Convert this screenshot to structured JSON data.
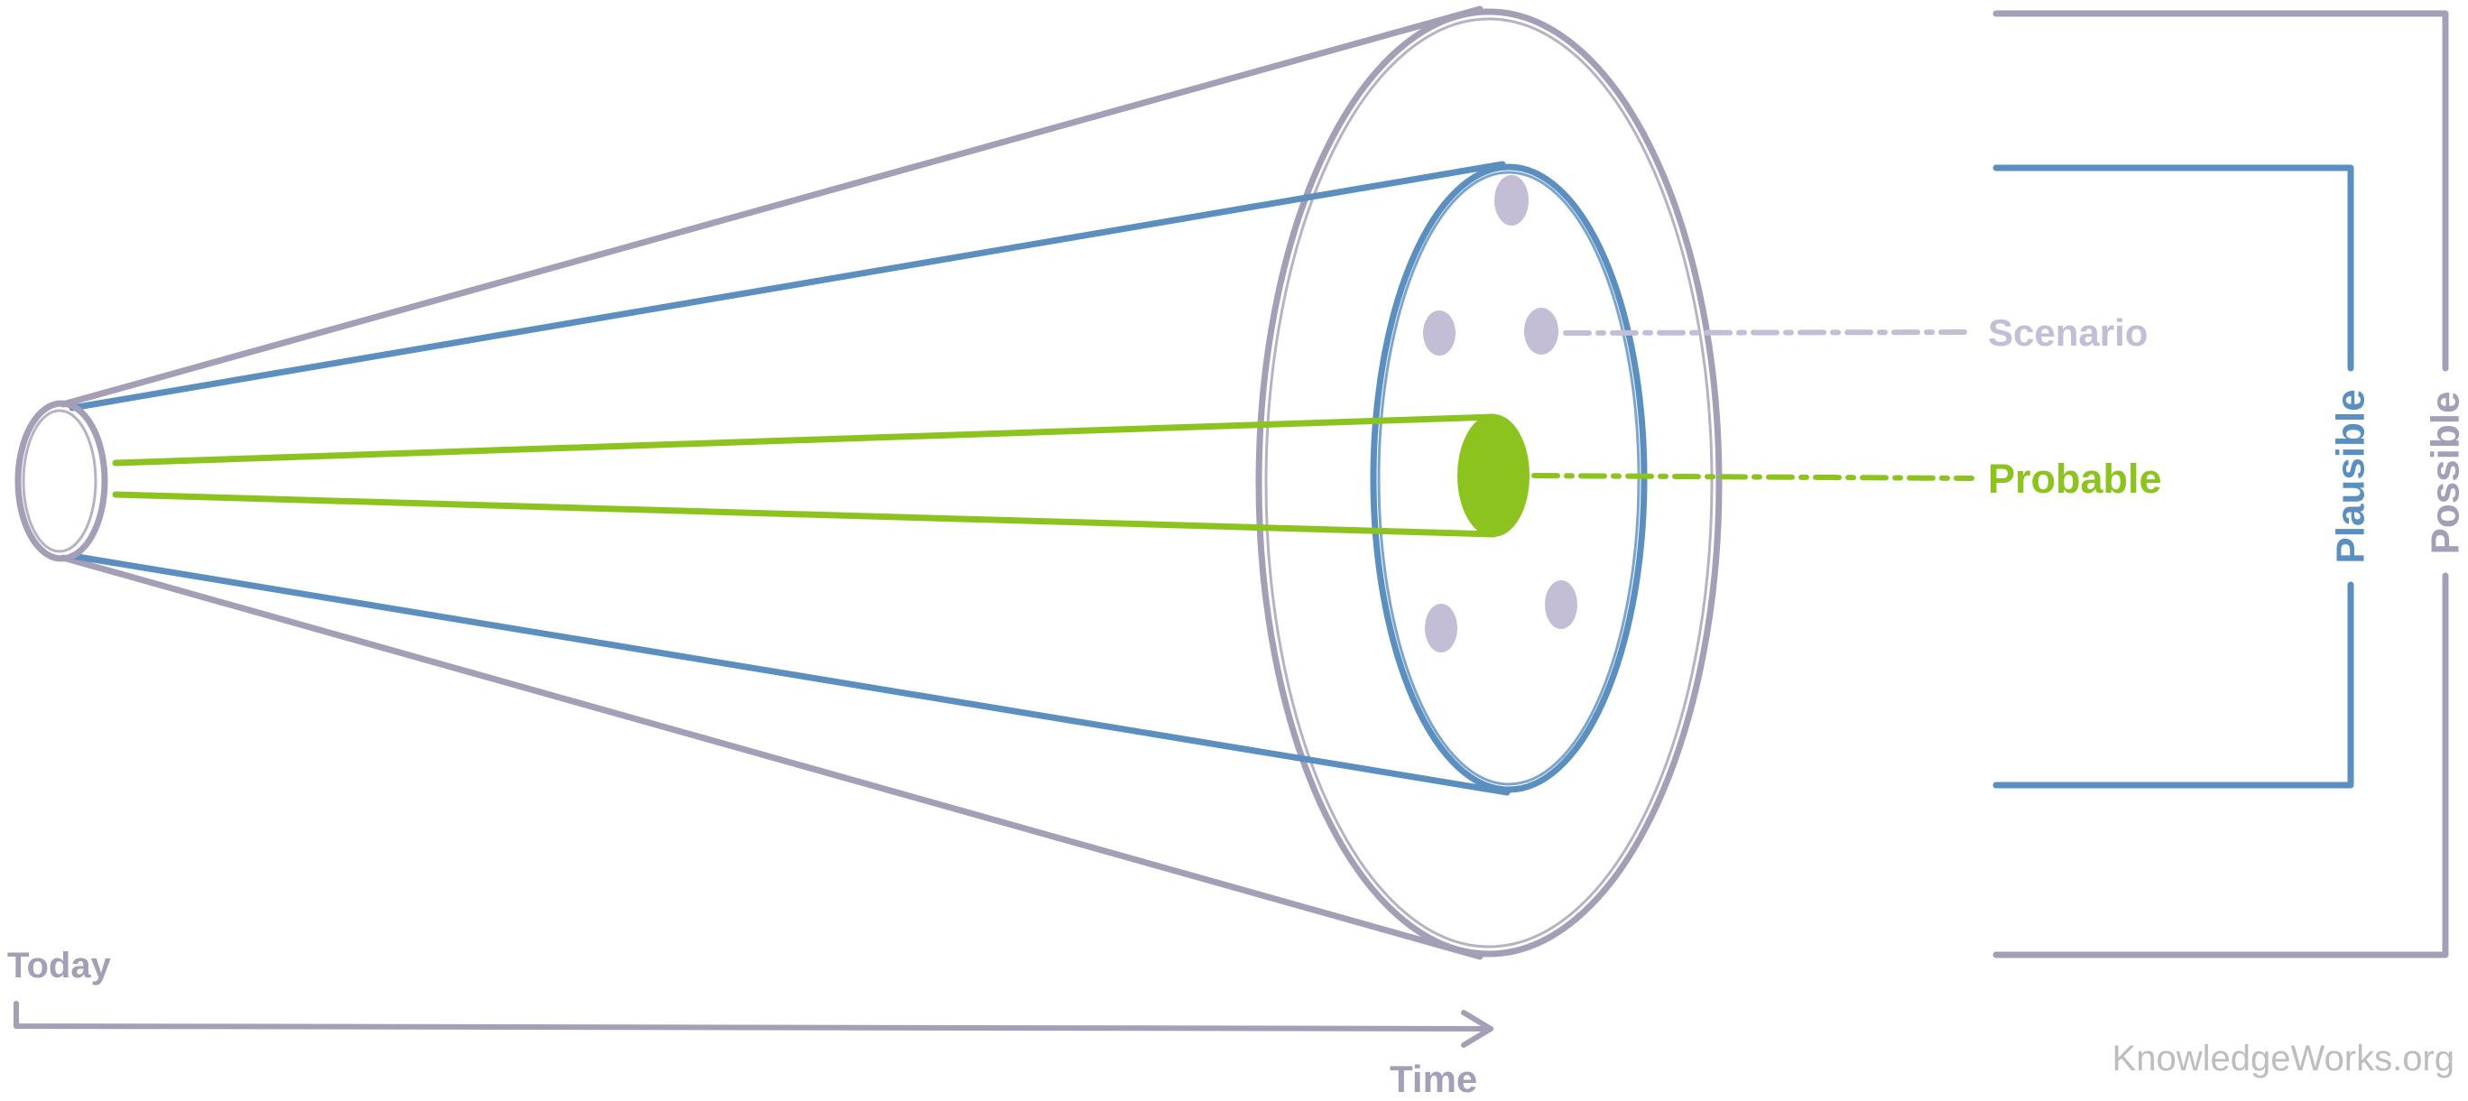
{
  "labels": {
    "scenario": "Scenario",
    "probable": "Probable",
    "plausible": "Plausible",
    "possible": "Possible",
    "today": "Today",
    "time": "Time",
    "watermark": "KnowledgeWorks.org"
  },
  "colors": {
    "possible": "#A49EB6",
    "plausible": "#5B8FC0",
    "probable": "#8DC31E",
    "scenario": "#C3BDD6",
    "watermark": "#BDBDBD",
    "background": "#FFFFFF"
  }
}
